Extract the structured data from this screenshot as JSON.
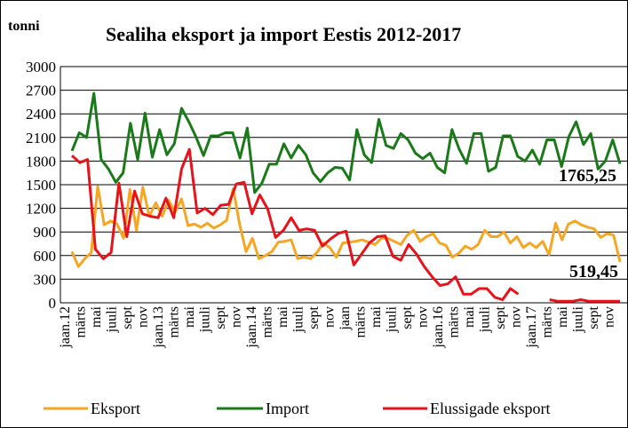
{
  "chart_data": {
    "type": "line",
    "title": "Sealiha eksport ja import Eestis 2012-2017",
    "ylabel": "tonni",
    "ylim": [
      0,
      3000
    ],
    "yticks": [
      0,
      300,
      600,
      900,
      1200,
      1500,
      1800,
      2100,
      2400,
      2700,
      3000
    ],
    "grid": true,
    "legend_position": "bottom",
    "x_tick_labels": [
      "jaan.12",
      "märts",
      "mai",
      "juuli",
      "sept",
      "nov",
      "jaan.13",
      "märts",
      "mai",
      "juuli",
      "sept",
      "nov",
      "jaan.14",
      "märts",
      "mai",
      "juuli",
      "sept",
      "nov",
      "jaan",
      "märts",
      "mai",
      "juuli",
      "sept",
      "nov",
      "jaan.16",
      "märts",
      "mai",
      "juuli",
      "sept",
      "nov",
      "jaan.17",
      "märts",
      "mai",
      "juuli",
      "sept",
      "nov"
    ],
    "series": [
      {
        "name": "Eksport",
        "color": "#f5a623",
        "values": [
          650,
          460,
          560,
          640,
          1480,
          990,
          1040,
          1000,
          820,
          1440,
          920,
          1470,
          1100,
          1270,
          1100,
          1300,
          1150,
          1320,
          980,
          1000,
          960,
          1010,
          950,
          990,
          1050,
          1450,
          1000,
          650,
          820,
          560,
          600,
          650,
          770,
          780,
          800,
          560,
          580,
          560,
          640,
          760,
          700,
          580,
          760,
          770,
          780,
          800,
          770,
          740,
          820,
          820,
          780,
          740,
          860,
          920,
          780,
          840,
          880,
          760,
          730,
          580,
          630,
          720,
          680,
          740,
          920,
          840,
          840,
          900,
          760,
          840,
          700,
          760,
          700,
          780,
          610,
          1010,
          800,
          1000,
          1040,
          990,
          960,
          940,
          830,
          880,
          860,
          519.45
        ]
      },
      {
        "name": "Import",
        "color": "#1a7a1a",
        "values": [
          1930,
          2160,
          2100,
          2660,
          1820,
          1700,
          1530,
          1650,
          2280,
          1820,
          2410,
          1850,
          2200,
          1880,
          2020,
          2470,
          2300,
          2100,
          1870,
          2120,
          2120,
          2160,
          2160,
          1840,
          2220,
          1400,
          1520,
          1760,
          1760,
          2020,
          1840,
          2000,
          1880,
          1650,
          1540,
          1650,
          1720,
          1710,
          1560,
          2200,
          1880,
          1780,
          2330,
          2000,
          1960,
          2150,
          2070,
          1900,
          1830,
          1900,
          1720,
          1650,
          2200,
          1950,
          1770,
          2150,
          2150,
          1670,
          1720,
          2120,
          2120,
          1860,
          1800,
          1940,
          1760,
          2070,
          2070,
          1730,
          2110,
          2300,
          2010,
          2150,
          1700,
          1800,
          2070,
          1765.25
        ]
      },
      {
        "name": "Elussigade eksport",
        "color": "#e8131a",
        "values": [
          1870,
          1780,
          1820,
          680,
          560,
          640,
          1520,
          840,
          1420,
          1130,
          1100,
          1080,
          1330,
          1080,
          1700,
          1950,
          1140,
          1200,
          1120,
          1240,
          1250,
          1510,
          1530,
          1130,
          1370,
          1190,
          830,
          920,
          1080,
          920,
          940,
          920,
          720,
          810,
          880,
          910,
          480,
          620,
          760,
          840,
          850,
          590,
          540,
          740,
          620,
          460,
          330,
          220,
          240,
          330,
          110,
          110,
          180,
          180,
          70,
          40,
          180,
          110,
          null,
          null,
          null,
          40,
          20,
          20,
          20,
          40,
          20,
          20,
          20,
          20,
          20
        ]
      }
    ],
    "annotations": {
      "import_last": "1765,25",
      "export_last": "519,45"
    }
  }
}
